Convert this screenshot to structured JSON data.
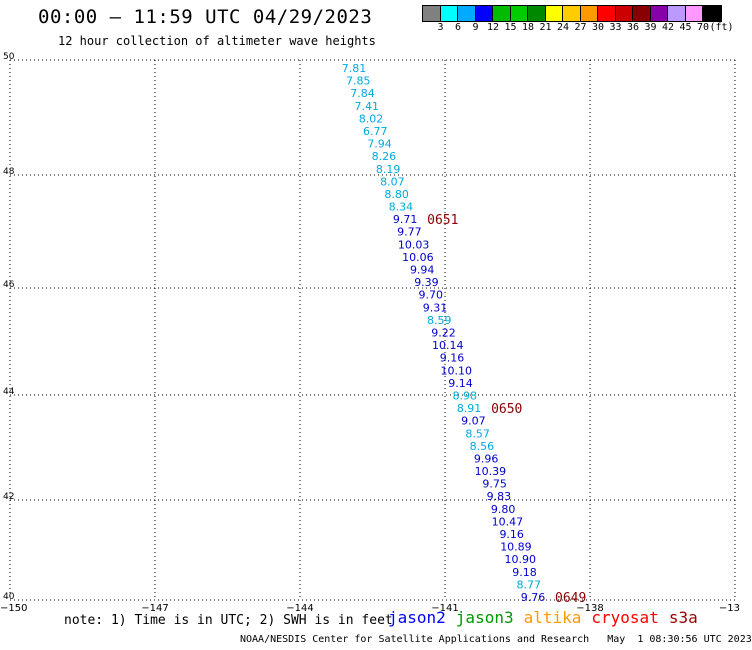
{
  "header": {
    "title": "00:00 — 11:59 UTC 04/29/2023",
    "subtitle": "12 hour collection of altimeter wave heights"
  },
  "colorbar": {
    "colors": [
      "#808080",
      "#00ffff",
      "#00aaff",
      "#0000ff",
      "#00bb00",
      "#00cc00",
      "#008800",
      "#ffff00",
      "#ffcc00",
      "#ff9900",
      "#ff0000",
      "#cc0000",
      "#880000",
      "#8800aa",
      "#bb99ff",
      "#ff99ff",
      "#000000"
    ],
    "labels": [
      "3",
      "6",
      "9",
      "12",
      "15",
      "18",
      "21",
      "24",
      "27",
      "30",
      "33",
      "36",
      "39",
      "42",
      "45",
      "70"
    ],
    "unit": "(ft)"
  },
  "map": {
    "lat_labels": [
      "50",
      "48",
      "46",
      "44",
      "42",
      "40"
    ],
    "lon_labels": [
      "−150",
      "−147",
      "−144",
      "−141",
      "−138",
      "−13"
    ],
    "observations": [
      {
        "v": "7.81",
        "c": "#00aadd"
      },
      {
        "v": "7.85",
        "c": "#00aadd"
      },
      {
        "v": "7.84",
        "c": "#00aadd"
      },
      {
        "v": "7.41",
        "c": "#00aadd"
      },
      {
        "v": "8.02",
        "c": "#00aadd"
      },
      {
        "v": "6.77",
        "c": "#00aadd"
      },
      {
        "v": "7.94",
        "c": "#00aadd"
      },
      {
        "v": "8.26",
        "c": "#00aadd"
      },
      {
        "v": "8.19",
        "c": "#00aadd"
      },
      {
        "v": "8.07",
        "c": "#00aadd"
      },
      {
        "v": "8.80",
        "c": "#00aadd"
      },
      {
        "v": "8.34",
        "c": "#00aadd"
      },
      {
        "v": "9.71",
        "c": "#0000cc"
      },
      {
        "v": "9.77",
        "c": "#0000cc"
      },
      {
        "v": "10.03",
        "c": "#0000cc"
      },
      {
        "v": "10.06",
        "c": "#0000cc"
      },
      {
        "v": "9.94",
        "c": "#0000cc"
      },
      {
        "v": "9.39",
        "c": "#0000cc"
      },
      {
        "v": "9.70",
        "c": "#0000cc"
      },
      {
        "v": "9.31",
        "c": "#0000cc"
      },
      {
        "v": "8.59",
        "c": "#00aadd"
      },
      {
        "v": "9.22",
        "c": "#0000cc"
      },
      {
        "v": "10.14",
        "c": "#0000cc"
      },
      {
        "v": "9.16",
        "c": "#0000cc"
      },
      {
        "v": "10.10",
        "c": "#0000cc"
      },
      {
        "v": "9.14",
        "c": "#0000cc"
      },
      {
        "v": "8.98",
        "c": "#00aadd"
      },
      {
        "v": "8.91",
        "c": "#00aadd"
      },
      {
        "v": "9.07",
        "c": "#0000cc"
      },
      {
        "v": "8.57",
        "c": "#00aadd"
      },
      {
        "v": "8.56",
        "c": "#00aadd"
      },
      {
        "v": "9.96",
        "c": "#0000cc"
      },
      {
        "v": "10.39",
        "c": "#0000cc"
      },
      {
        "v": "9.75",
        "c": "#0000cc"
      },
      {
        "v": "9.83",
        "c": "#0000cc"
      },
      {
        "v": "9.80",
        "c": "#0000cc"
      },
      {
        "v": "10.47",
        "c": "#0000cc"
      },
      {
        "v": "9.16",
        "c": "#0000cc"
      },
      {
        "v": "10.89",
        "c": "#0000cc"
      },
      {
        "v": "10.90",
        "c": "#0000cc"
      },
      {
        "v": "9.18",
        "c": "#0000cc"
      },
      {
        "v": "8.77",
        "c": "#00aadd"
      },
      {
        "v": "9.76",
        "c": "#0000cc"
      }
    ],
    "pass_times": [
      "0651",
      "0650",
      "0649"
    ]
  },
  "footer": {
    "note": "note: 1) Time is in UTC; 2) SWH is in feet",
    "legend": [
      {
        "name": "jason2",
        "color": "#0000ff"
      },
      {
        "name": "jason3",
        "color": "#009900"
      },
      {
        "name": "altika",
        "color": "#ff9900"
      },
      {
        "name": "cryosat",
        "color": "#ff0000"
      },
      {
        "name": "s3a",
        "color": "#990000"
      }
    ],
    "credit": "NOAA/NESDIS Center for Satellite Applications and Research   May  1 08:30:56 UTC 2023"
  }
}
